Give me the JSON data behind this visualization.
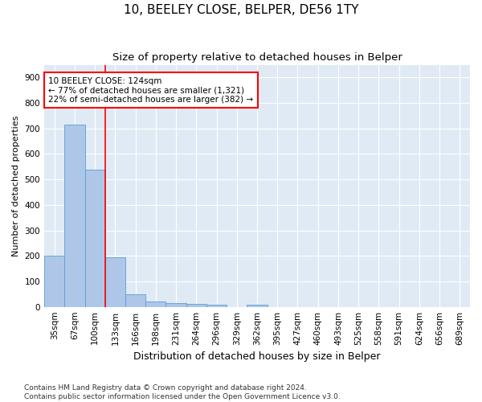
{
  "title": "10, BEELEY CLOSE, BELPER, DE56 1TY",
  "subtitle": "Size of property relative to detached houses in Belper",
  "xlabel": "Distribution of detached houses by size in Belper",
  "ylabel": "Number of detached properties",
  "categories": [
    "35sqm",
    "67sqm",
    "100sqm",
    "133sqm",
    "166sqm",
    "198sqm",
    "231sqm",
    "264sqm",
    "296sqm",
    "329sqm",
    "362sqm",
    "395sqm",
    "427sqm",
    "460sqm",
    "493sqm",
    "525sqm",
    "558sqm",
    "591sqm",
    "624sqm",
    "656sqm",
    "689sqm"
  ],
  "values": [
    200,
    715,
    540,
    195,
    48,
    22,
    14,
    12,
    10,
    0,
    10,
    0,
    0,
    0,
    0,
    0,
    0,
    0,
    0,
    0,
    0
  ],
  "bar_color": "#aec6e8",
  "bar_edge_color": "#5a9fd4",
  "vline_color": "red",
  "annotation_text": "10 BEELEY CLOSE: 124sqm\n← 77% of detached houses are smaller (1,321)\n22% of semi-detached houses are larger (382) →",
  "annotation_box_color": "white",
  "annotation_box_edge": "red",
  "ylim": [
    0,
    950
  ],
  "yticks": [
    0,
    100,
    200,
    300,
    400,
    500,
    600,
    700,
    800,
    900
  ],
  "footer": "Contains HM Land Registry data © Crown copyright and database right 2024.\nContains public sector information licensed under the Open Government Licence v3.0.",
  "background_color": "#e0eaf5",
  "grid_color": "white",
  "title_fontsize": 11,
  "subtitle_fontsize": 9.5,
  "xlabel_fontsize": 9,
  "ylabel_fontsize": 8,
  "tick_fontsize": 7.5,
  "annotation_fontsize": 7.5,
  "footer_fontsize": 6.5
}
